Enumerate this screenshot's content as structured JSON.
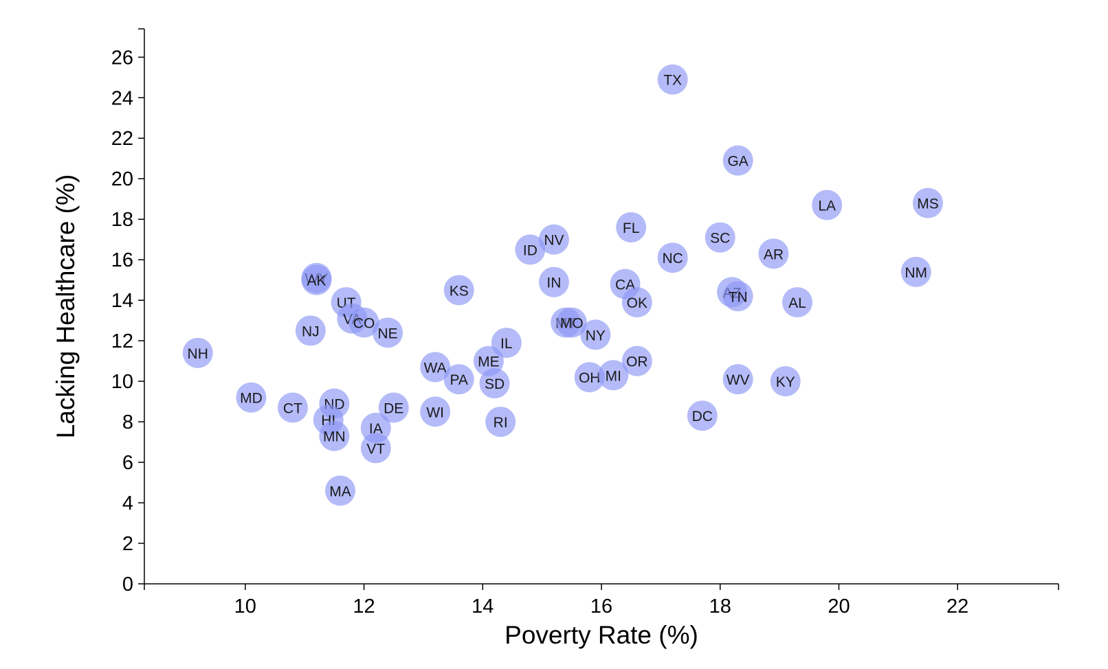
{
  "chart_data": {
    "type": "scatter",
    "title": "",
    "xlabel": "Poverty Rate (%)",
    "ylabel": "Lacking Healthcare (%)",
    "xlim": [
      8.3,
      23.7
    ],
    "ylim": [
      0,
      27.4
    ],
    "xticks": [
      10,
      12,
      14,
      16,
      18,
      20,
      22
    ],
    "yticks": [
      0,
      2,
      4,
      6,
      8,
      10,
      12,
      14,
      16,
      18,
      20,
      22,
      24,
      26
    ],
    "grid": false,
    "point_color": "#8c97f5",
    "points": [
      {
        "label": "TX",
        "x": 17.2,
        "y": 24.9
      },
      {
        "label": "GA",
        "x": 18.3,
        "y": 20.9
      },
      {
        "label": "LA",
        "x": 19.8,
        "y": 18.7
      },
      {
        "label": "MS",
        "x": 21.5,
        "y": 18.8
      },
      {
        "label": "FL",
        "x": 16.5,
        "y": 17.6
      },
      {
        "label": "SC",
        "x": 18.0,
        "y": 17.1
      },
      {
        "label": "NV",
        "x": 15.2,
        "y": 17.0
      },
      {
        "label": "ID",
        "x": 14.8,
        "y": 16.5
      },
      {
        "label": "NC",
        "x": 17.2,
        "y": 16.1
      },
      {
        "label": "AR",
        "x": 18.9,
        "y": 16.3
      },
      {
        "label": "NM",
        "x": 21.3,
        "y": 15.4
      },
      {
        "label": "WY",
        "x": 11.2,
        "y": 15.1
      },
      {
        "label": "AK",
        "x": 11.2,
        "y": 15.0
      },
      {
        "label": "IN",
        "x": 15.2,
        "y": 14.9
      },
      {
        "label": "CA",
        "x": 16.4,
        "y": 14.8
      },
      {
        "label": "KS",
        "x": 13.6,
        "y": 14.5
      },
      {
        "label": "AZ",
        "x": 18.2,
        "y": 14.4
      },
      {
        "label": "TN",
        "x": 18.3,
        "y": 14.2
      },
      {
        "label": "UT",
        "x": 11.7,
        "y": 13.9
      },
      {
        "label": "OK",
        "x": 16.6,
        "y": 13.9
      },
      {
        "label": "AL",
        "x": 19.3,
        "y": 13.9
      },
      {
        "label": "VA",
        "x": 11.8,
        "y": 13.1
      },
      {
        "label": "CO",
        "x": 12.0,
        "y": 12.9
      },
      {
        "label": "MT",
        "x": 15.4,
        "y": 12.9
      },
      {
        "label": "MO",
        "x": 15.5,
        "y": 12.9
      },
      {
        "label": "NJ",
        "x": 11.1,
        "y": 12.5
      },
      {
        "label": "NE",
        "x": 12.4,
        "y": 12.4
      },
      {
        "label": "NY",
        "x": 15.9,
        "y": 12.3
      },
      {
        "label": "IL",
        "x": 14.4,
        "y": 11.9
      },
      {
        "label": "NH",
        "x": 9.2,
        "y": 11.4
      },
      {
        "label": "ME",
        "x": 14.1,
        "y": 11.0
      },
      {
        "label": "OR",
        "x": 16.6,
        "y": 11.0
      },
      {
        "label": "WA",
        "x": 13.2,
        "y": 10.7
      },
      {
        "label": "PA",
        "x": 13.6,
        "y": 10.1
      },
      {
        "label": "WV",
        "x": 18.3,
        "y": 10.1
      },
      {
        "label": "KY",
        "x": 19.1,
        "y": 10.0
      },
      {
        "label": "OH",
        "x": 15.8,
        "y": 10.2
      },
      {
        "label": "MI",
        "x": 16.2,
        "y": 10.3
      },
      {
        "label": "SD",
        "x": 14.2,
        "y": 9.9
      },
      {
        "label": "MD",
        "x": 10.1,
        "y": 9.2
      },
      {
        "label": "ND",
        "x": 11.5,
        "y": 8.9
      },
      {
        "label": "CT",
        "x": 10.8,
        "y": 8.7
      },
      {
        "label": "DE",
        "x": 12.5,
        "y": 8.7
      },
      {
        "label": "WI",
        "x": 13.2,
        "y": 8.5
      },
      {
        "label": "DC",
        "x": 17.7,
        "y": 8.3
      },
      {
        "label": "HI",
        "x": 11.4,
        "y": 8.1
      },
      {
        "label": "RI",
        "x": 14.3,
        "y": 8.0
      },
      {
        "label": "IA",
        "x": 12.2,
        "y": 7.7
      },
      {
        "label": "MN",
        "x": 11.5,
        "y": 7.3
      },
      {
        "label": "VT",
        "x": 12.2,
        "y": 6.7
      },
      {
        "label": "MA",
        "x": 11.6,
        "y": 4.6
      }
    ]
  }
}
